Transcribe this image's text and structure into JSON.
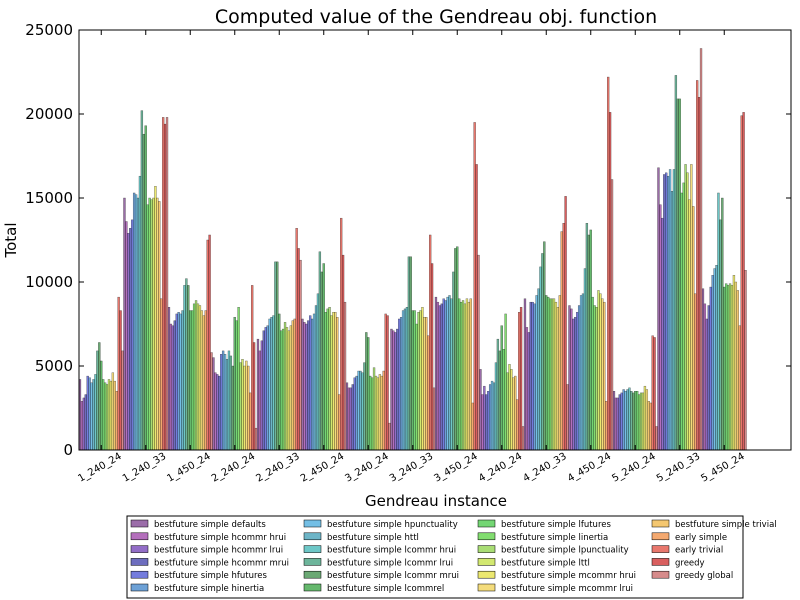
{
  "chart_data": {
    "type": "bar",
    "title": "Computed value of the Gendreau obj. function",
    "xlabel": "Gendreau instance",
    "ylabel": "Total",
    "ylim": [
      0,
      25000
    ],
    "yticks": [
      "0",
      "5000",
      "10000",
      "15000",
      "20000",
      "25000"
    ],
    "ytick_values": [
      0,
      5000,
      10000,
      15000,
      20000,
      25000
    ],
    "categories": [
      "1_240_24",
      "1_240_33",
      "1_450_24",
      "2_240_24",
      "2_240_33",
      "2_450_24",
      "3_240_24",
      "3_240_33",
      "3_450_24",
      "4_240_24",
      "4_240_33",
      "4_450_24",
      "5_240_24",
      "5_240_33",
      "5_450_24"
    ],
    "grid": false,
    "legend_position": "bottom",
    "legend_columns": 4,
    "series": [
      {
        "name": "bestfuture simple defaults",
        "color": "#7a3c8c",
        "values": [
          4200,
          15000,
          8500,
          5500,
          6600,
          7800,
          4000,
          7200,
          9100,
          4800,
          9000,
          8600,
          3500,
          16800,
          9600
        ]
      },
      {
        "name": "bestfuture simple hcommr hrui",
        "color": "#9b3fa6",
        "values": [
          2900,
          13600,
          7500,
          4600,
          5900,
          7600,
          3700,
          7100,
          8800,
          3300,
          7300,
          8400,
          3100,
          14600,
          8700
        ]
      },
      {
        "name": "bestfuture simple hcommr lrui",
        "color": "#6e3cb4",
        "values": [
          3100,
          12900,
          7400,
          4500,
          6500,
          7500,
          3700,
          7000,
          8600,
          3800,
          7000,
          7800,
          3100,
          13800,
          7800
        ]
      },
      {
        "name": "bestfuture simple hcommr mrui",
        "color": "#3c3ca8",
        "values": [
          3300,
          13200,
          7700,
          4400,
          7100,
          7700,
          3900,
          7200,
          8700,
          3300,
          8800,
          7900,
          3300,
          16400,
          8600
        ]
      },
      {
        "name": "bestfuture simple hfutures",
        "color": "#4650d2",
        "values": [
          4400,
          13700,
          8100,
          5700,
          7300,
          8000,
          4300,
          7800,
          9000,
          3500,
          8800,
          8200,
          3400,
          16500,
          9700
        ]
      },
      {
        "name": "bestfuture simple hinertia",
        "color": "#3c82c8",
        "values": [
          4300,
          15300,
          8200,
          5900,
          7400,
          7800,
          4400,
          7900,
          8900,
          3900,
          8700,
          8600,
          3600,
          16300,
          10400
        ]
      },
      {
        "name": "bestfuture simple hpunctuality",
        "color": "#46aadc",
        "values": [
          4000,
          15200,
          8100,
          5700,
          7800,
          8100,
          4700,
          8300,
          9100,
          4100,
          9200,
          9200,
          3500,
          16700,
          10800
        ]
      },
      {
        "name": "bestfuture simple httl",
        "color": "#3c9cb4",
        "values": [
          4200,
          15000,
          8300,
          5400,
          7900,
          8600,
          4700,
          8400,
          9200,
          4000,
          9600,
          9300,
          3600,
          15400,
          11000
        ]
      },
      {
        "name": "bestfuture simple lcommr hrui",
        "color": "#3cb4b4",
        "values": [
          4500,
          16300,
          9800,
          5900,
          8000,
          9300,
          4600,
          8500,
          9000,
          5200,
          10900,
          10800,
          3700,
          16700,
          15300
        ]
      },
      {
        "name": "bestfuture simple lcommr lrui",
        "color": "#3c9c7a",
        "values": [
          5900,
          20200,
          10200,
          5600,
          11200,
          11800,
          5200,
          11500,
          10600,
          6600,
          11700,
          13500,
          3500,
          22300,
          13700
        ]
      },
      {
        "name": "bestfuture simple lcommr mrui",
        "color": "#3a8c46",
        "values": [
          6400,
          18800,
          9800,
          5000,
          11200,
          10600,
          7000,
          11500,
          12000,
          5900,
          12400,
          12800,
          3400,
          20900,
          15000
        ]
      },
      {
        "name": "bestfuture simple lcommrel",
        "color": "#32a03c",
        "values": [
          5300,
          19300,
          8300,
          7900,
          8100,
          11100,
          6700,
          8300,
          12100,
          7400,
          9200,
          13100,
          3500,
          20900,
          9700
        ]
      },
      {
        "name": "bestfuture simple lfutures",
        "color": "#46c846",
        "values": [
          4200,
          14600,
          8300,
          7700,
          7100,
          8200,
          4400,
          8300,
          9000,
          6000,
          9100,
          9100,
          3500,
          15300,
          9900
        ]
      },
      {
        "name": "bestfuture simple linertia",
        "color": "#58d240",
        "values": [
          4000,
          15000,
          8700,
          8500,
          7200,
          8400,
          4300,
          7500,
          8800,
          8100,
          9000,
          8600,
          3300,
          15900,
          9800
        ]
      },
      {
        "name": "bestfuture simple lpunctuality",
        "color": "#8cd246",
        "values": [
          3900,
          14900,
          8900,
          5200,
          7600,
          8500,
          4900,
          8200,
          8900,
          4600,
          9000,
          8500,
          3400,
          17000,
          9900
        ]
      },
      {
        "name": "bestfuture simple lttl",
        "color": "#c3e040",
        "values": [
          4200,
          15000,
          8700,
          5400,
          7300,
          8000,
          4400,
          8300,
          8700,
          5100,
          9000,
          9500,
          3400,
          16500,
          9800
        ]
      },
      {
        "name": "bestfuture simple mcommr hrui",
        "color": "#e6e040",
        "values": [
          4100,
          15700,
          8600,
          5000,
          7100,
          8200,
          4300,
          8500,
          9000,
          4800,
          8800,
          9300,
          3800,
          14900,
          10400
        ]
      },
      {
        "name": "bestfuture simple mcommr lrui",
        "color": "#f0d050",
        "values": [
          4600,
          15000,
          8300,
          5300,
          7400,
          8200,
          4500,
          7900,
          8800,
          4300,
          8500,
          9000,
          3600,
          17000,
          10000
        ]
      },
      {
        "name": "bestfuture simple trivial",
        "color": "#f0b440",
        "values": [
          4100,
          14800,
          8000,
          5000,
          7700,
          7900,
          4400,
          7900,
          9000,
          4400,
          9200,
          8800,
          2900,
          14500,
          9500
        ]
      },
      {
        "name": "early simple",
        "color": "#f08c40",
        "values": [
          3500,
          9000,
          8300,
          3400,
          7800,
          3300,
          4700,
          6800,
          2800,
          3000,
          13000,
          2900,
          2800,
          9300,
          7400
        ]
      },
      {
        "name": "early trivial",
        "color": "#e04a3c",
        "values": [
          9100,
          19800,
          12500,
          9800,
          13200,
          13800,
          8100,
          12800,
          19500,
          8200,
          13500,
          22200,
          6800,
          22000,
          19900
        ]
      },
      {
        "name": "greedy",
        "color": "#cc2a2a",
        "values": [
          8300,
          19400,
          12800,
          6400,
          12000,
          11600,
          8000,
          11100,
          17000,
          8500,
          15100,
          20100,
          6700,
          21000,
          20100
        ]
      },
      {
        "name": "greedy global",
        "color": "#c86464",
        "values": [
          5900,
          19800,
          5800,
          1300,
          11300,
          8800,
          1600,
          3700,
          11600,
          1400,
          3900,
          16100,
          1400,
          23900,
          10700
        ]
      }
    ]
  }
}
